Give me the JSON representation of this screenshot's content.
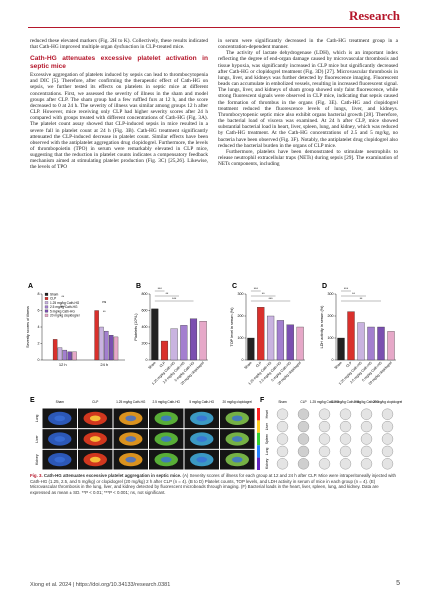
{
  "header": {
    "journal": "Research"
  },
  "left": {
    "intro": "reduced these elevated markers (Fig. 2H to K). Collectively, these results indicated that Cath-HG improved multiple organ dysfunction in CLP-treated mice.",
    "heading": "Cath-HG attenuates excessive platelet activation in septic mice",
    "body": "Excessive aggregation of platelets induced by sepsis can lead to thrombocytopenia and DIC [5]. Therefore, after confirming the therapeutic effect of Cath-HG on sepsis, we further tested its effects on platelets in septic mice at different concentrations. First, we assessed the severity of illness in the sham and model groups after CLP. The sham group had a few ruffled furs at 12 h, and the score decreased to 0 at 24 h. The severity of illness was similar among groups 12 h after CLP. However, mice receiving only CLP had higher severity scores after 24 h compared with groups treated with different concentrations of Cath-HG (Fig. 3A). The platelet count assay showed that CLP-induced sepsis in mice resulted in a severe fall in platelet count at 24 h (Fig. 3B). Cath-HG treatment significantly attenuated the CLP-induced decrease in platelet count. Similar effects have been observed with the antiplatelet aggregation drug clopidogrel. Furthermore, the levels of thrombopoietin (TPO) in serum were remarkably elevated in CLP mice, suggesting that the reduction in platelet counts indicates a compensatory feedback mechanism aimed at stimulating platelet production (Fig. 3C) [25,26]. Likewise, the levels of TPO"
  },
  "right": {
    "paragraphs": [
      "in serum were significantly decreased in the Cath-HG treatment group in a concentration-dependent manner.",
      "The activity of lactate dehydrogenase (LDH), which is an important index reflecting the degree of end-organ damage caused by microvascular thrombosis and tissue hypoxia, was significantly increased in CLP mice but significantly decreased after Cath-HG or clopidogrel treatment (Fig. 3D) [27]. Microvascular thrombosis in lungs, liver, and kidneys was further detected by fluorescence imaging. Fluorescent beads can accumulate in embolized vessels, resulting in increased fluorescent signal. The lungs, liver, and kidneys of sham group showed only faint fluorescence, while strong fluorescent signals were observed in CLP mice, indicating that sepsis caused the formation of thrombus in the organs (Fig. 3E). Cath-HG and clopidogrel treatment reduced the fluorescence levels of lungs, liver, and kidneys. Thrombocytopenic septic mice also exhibit organs bacterial growth [28]. Therefore, the bacterial load of viscera was examined. At 24 h after CLP, mice showed substantial bacterial load in heart, liver, spleen, lung, and kidney, which was reduced by Cath-HG treatment. At the Cath-HG concentrations of 2.5 and 5 mg/kg, no bacteria have been observed (Fig. 3F). Notably, the antiplatelet drug clopidogrel also reduced the bacterial burden in the organs of CLP mice.",
      "Furthermore, platelets have been demonstrated to stimulate neutrophils to release neutrophil extracellular traps (NETs) during sepsis [29]. The examination of NETs components, including"
    ]
  },
  "figure": {
    "charts": [
      {
        "label": "A",
        "type": "grouped-bar",
        "ylabel": "Severity scores of illness",
        "ylim": [
          0,
          8
        ],
        "yticks": [
          0,
          2,
          4,
          6,
          8
        ],
        "categories": [
          "12 h",
          "24 h"
        ],
        "series": [
          {
            "name": "Sham",
            "color": "#222222",
            "values": [
              0,
              0
            ]
          },
          {
            "name": "CLP",
            "color": "#d9302c",
            "values": [
              2.5,
              6
            ]
          },
          {
            "name": "1.25 mg/kg Cath-HG",
            "color": "#c9b3e0",
            "values": [
              1.5,
              4
            ]
          },
          {
            "name": "2.5 mg/kg Cath-HG",
            "color": "#a37fcf",
            "values": [
              1.2,
              3.5
            ]
          },
          {
            "name": "5 mg/kg Cath-HG",
            "color": "#7a4fb0",
            "values": [
              1,
              3
            ]
          },
          {
            "name": "20 mg/kg clopidogrel",
            "color": "#e6a8c8",
            "values": [
              1,
              2.8
            ]
          }
        ],
        "annotations": [
          "**",
          "ns",
          "***",
          "**"
        ]
      },
      {
        "label": "B",
        "type": "bar",
        "ylabel": "Platelets (10⁹/L)",
        "ylim": [
          0,
          800
        ],
        "yticks": [
          0,
          200,
          400,
          600,
          800
        ],
        "categories": [
          "Sham",
          "CLP",
          "1.25 mg/kg Cath-HG",
          "2.5 mg/kg Cath-HG",
          "5 mg/kg Cath-HG",
          "20 mg/kg clopidogrel"
        ],
        "values": [
          620,
          230,
          380,
          420,
          500,
          470
        ],
        "colors": [
          "#222222",
          "#d9302c",
          "#c9b3e0",
          "#a37fcf",
          "#7a4fb0",
          "#e6a8c8"
        ],
        "annotations": [
          "***",
          "**",
          "***"
        ]
      },
      {
        "label": "C",
        "type": "bar",
        "ylabel": "TOP level in serum (%)",
        "ylim": [
          0,
          300
        ],
        "yticks": [
          0,
          100,
          200,
          300
        ],
        "categories": [
          "Sham",
          "CLP",
          "1.25 mg/kg Cath-HG",
          "2.5 mg/kg Cath-HG",
          "5 mg/kg Cath-HG",
          "20 mg/kg clopidogrel"
        ],
        "values": [
          100,
          240,
          200,
          180,
          160,
          150
        ],
        "colors": [
          "#222222",
          "#d9302c",
          "#c9b3e0",
          "#a37fcf",
          "#7a4fb0",
          "#e6a8c8"
        ],
        "annotations": [
          "***",
          "**",
          "***"
        ]
      },
      {
        "label": "D",
        "type": "bar",
        "ylabel": "LDH activity in serum (%)",
        "ylim": [
          0,
          300
        ],
        "yticks": [
          0,
          100,
          200,
          300
        ],
        "categories": [
          "Sham",
          "CLP",
          "1.25 mg/kg Cath-HG",
          "2.5 mg/kg Cath-HG",
          "5 mg/kg Cath-HG",
          "20 mg/kg clopidogrel"
        ],
        "values": [
          100,
          220,
          170,
          150,
          150,
          130
        ],
        "colors": [
          "#222222",
          "#d9302c",
          "#c9b3e0",
          "#a37fcf",
          "#7a4fb0",
          "#e6a8c8"
        ],
        "annotations": [
          "***",
          "**",
          "**"
        ]
      }
    ],
    "images": [
      {
        "label": "E",
        "columns": [
          "Sham",
          "CLP",
          "1.25 mg/kg Cath-HG",
          "2.5 mg/kg Cath-HG",
          "5 mg/kg Cath-HG",
          "20 mg/kg clopidogrel"
        ],
        "rows": [
          "Lung",
          "Liver",
          "Kidney"
        ]
      },
      {
        "label": "F",
        "columns": [
          "Sham",
          "CLP",
          "1.25 mg/kg Cath-HG",
          "2.5 mg/kg Cath-HG",
          "5 mg/kg Cath-HG",
          "20 mg/kg clopidogrel"
        ],
        "rows": [
          "Heart",
          "Liver",
          "Spleen",
          "Lung",
          "Kidney"
        ]
      }
    ],
    "caption": {
      "label": "Fig. 3.",
      "title": "Cath-HG attenuates excessive platelet aggregation in septic mice.",
      "text": "(A) Severity scores of illness for each group at 12 and 24 h after CLP. Mice were intraperitoneally injected with Cath-HG (1.25, 2.5, and 5 mg/kg) or clopidogrel (20 mg/kg) 2 h after CLP (n = 4). (B to D) Platelet counts, TOP levels, and LDH activity in serum of mice in each group (n = 4). (E) Microvascular thrombosis in the lung, liver, and kidney detected by fluorescent microbeads through imaging. (F) Bacterial loads in the heart, liver, spleen, lung, and kidney. Data are expressed as mean ± SD. **P < 0.01; ***P < 0.001; ns, not significant."
    }
  },
  "footer": {
    "citation": "Xiong et al. 2024 | https://doi.org/10.34133/research.0381",
    "page": "5"
  }
}
